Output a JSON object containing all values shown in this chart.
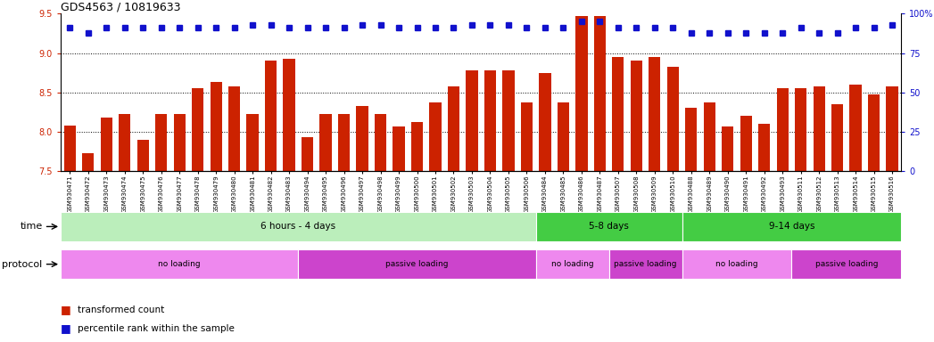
{
  "title": "GDS4563 / 10819633",
  "samples": [
    "GSM930471",
    "GSM930472",
    "GSM930473",
    "GSM930474",
    "GSM930475",
    "GSM930476",
    "GSM930477",
    "GSM930478",
    "GSM930479",
    "GSM930480",
    "GSM930481",
    "GSM930482",
    "GSM930483",
    "GSM930494",
    "GSM930495",
    "GSM930496",
    "GSM930497",
    "GSM930498",
    "GSM930499",
    "GSM930500",
    "GSM930501",
    "GSM930502",
    "GSM930503",
    "GSM930504",
    "GSM930505",
    "GSM930506",
    "GSM930484",
    "GSM930485",
    "GSM930486",
    "GSM930487",
    "GSM930507",
    "GSM930508",
    "GSM930509",
    "GSM930510",
    "GSM930488",
    "GSM930489",
    "GSM930490",
    "GSM930491",
    "GSM930492",
    "GSM930493",
    "GSM930511",
    "GSM930512",
    "GSM930513",
    "GSM930514",
    "GSM930515",
    "GSM930516"
  ],
  "bar_values": [
    8.08,
    7.73,
    8.18,
    8.22,
    7.9,
    8.22,
    8.22,
    8.55,
    8.63,
    8.57,
    8.22,
    8.9,
    8.93,
    7.93,
    8.22,
    8.22,
    8.33,
    8.22,
    8.07,
    8.12,
    8.37,
    8.57,
    8.78,
    8.78,
    8.78,
    8.37,
    8.75,
    8.37,
    9.47,
    9.47,
    8.95,
    8.9,
    8.95,
    8.83,
    8.3,
    8.37,
    8.07,
    8.2,
    8.1,
    8.55,
    8.55,
    8.57,
    8.35,
    8.6,
    8.47,
    8.57
  ],
  "percentile_values": [
    91,
    88,
    91,
    91,
    91,
    91,
    91,
    91,
    91,
    91,
    93,
    93,
    91,
    91,
    91,
    91,
    93,
    93,
    91,
    91,
    91,
    91,
    93,
    93,
    93,
    91,
    91,
    91,
    95,
    95,
    91,
    91,
    91,
    91,
    88,
    88,
    88,
    88,
    88,
    88,
    91,
    88,
    88,
    91,
    91,
    93
  ],
  "bar_color": "#CC2200",
  "dot_color": "#1111CC",
  "ylim_left": [
    7.5,
    9.5
  ],
  "ylim_right": [
    0,
    100
  ],
  "yticks_left": [
    7.5,
    8.0,
    8.5,
    9.0,
    9.5
  ],
  "yticks_right": [
    0,
    25,
    50,
    75,
    100
  ],
  "gridlines": [
    8.0,
    8.5,
    9.0
  ],
  "time_groups": [
    {
      "label": "6 hours - 4 days",
      "start": 0,
      "end": 26,
      "color": "#BBEEBB"
    },
    {
      "label": "5-8 days",
      "start": 26,
      "end": 34,
      "color": "#44CC44"
    },
    {
      "label": "9-14 days",
      "start": 34,
      "end": 46,
      "color": "#44CC44"
    }
  ],
  "protocol_groups": [
    {
      "label": "no loading",
      "start": 0,
      "end": 13,
      "color": "#EE88EE"
    },
    {
      "label": "passive loading",
      "start": 13,
      "end": 26,
      "color": "#CC44CC"
    },
    {
      "label": "no loading",
      "start": 26,
      "end": 30,
      "color": "#EE88EE"
    },
    {
      "label": "passive loading",
      "start": 30,
      "end": 34,
      "color": "#CC44CC"
    },
    {
      "label": "no loading",
      "start": 34,
      "end": 40,
      "color": "#EE88EE"
    },
    {
      "label": "passive loading",
      "start": 40,
      "end": 46,
      "color": "#CC44CC"
    }
  ],
  "bg_color": "#FFFFFF"
}
